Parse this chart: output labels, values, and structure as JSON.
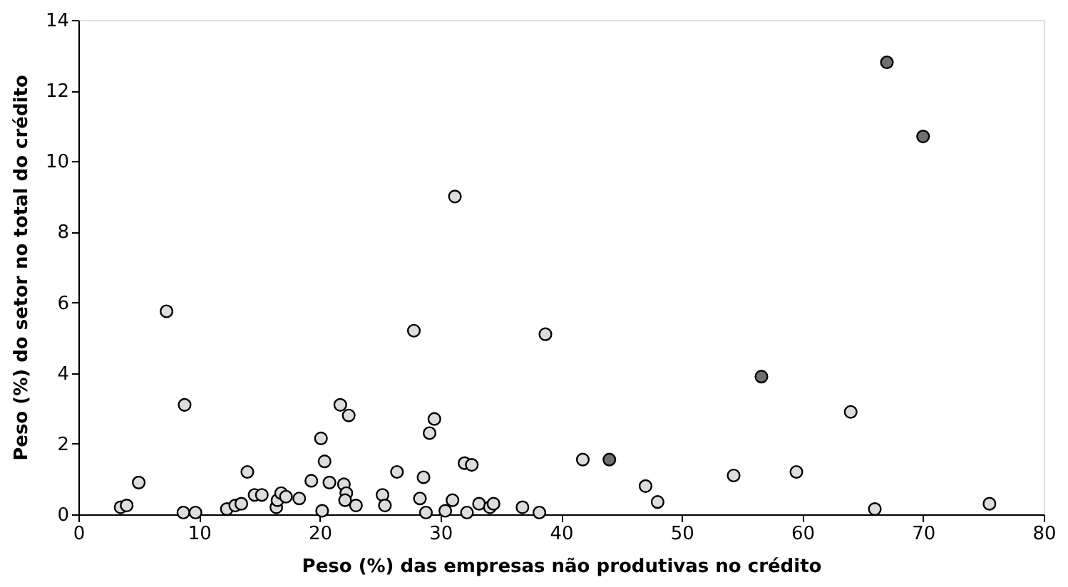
{
  "chart_data": {
    "type": "scatter",
    "xlabel": "Peso (%) das empresas não produtivas no crédito",
    "ylabel": "Peso (%) do setor no total do crédito",
    "xlim": [
      0,
      80
    ],
    "xticks": [
      0,
      10,
      20,
      30,
      40,
      50,
      60,
      70,
      80
    ],
    "ylim": [
      0,
      14
    ],
    "yticks": [
      0,
      2,
      4,
      6,
      8,
      10,
      12,
      14
    ],
    "grid": false,
    "legend": false,
    "marker": "circle",
    "series": [
      {
        "color": "#dddddd",
        "x": [
          3.5,
          4,
          5,
          7.3,
          8.8,
          8.7,
          9.7,
          12.3,
          13,
          13.5,
          14,
          14.6,
          15.2,
          16.4,
          16.5,
          16.8,
          17.2,
          18.3,
          19.3,
          20.1,
          20.4,
          20.2,
          20.8,
          21.7,
          22,
          22.4,
          22.2,
          22.1,
          23,
          25.2,
          25.4,
          26.4,
          27.8,
          28.3,
          28.6,
          28.8,
          29.1,
          29.5,
          30.4,
          31,
          31.2,
          32,
          32.2,
          32.6,
          33.2,
          34.1,
          34.4,
          36.8,
          38.2,
          38.7,
          41.8,
          47,
          48,
          54.3,
          59.5,
          64,
          66,
          75.5
        ],
        "values": [
          0.2,
          0.25,
          0.9,
          5.75,
          3.1,
          0.05,
          0.05,
          0.15,
          0.25,
          0.3,
          1.2,
          0.55,
          0.55,
          0.2,
          0.4,
          0.6,
          0.5,
          0.45,
          0.95,
          2.15,
          1.5,
          0.1,
          0.9,
          3.1,
          0.85,
          2.8,
          0.6,
          0.4,
          0.25,
          0.55,
          0.25,
          1.2,
          5.2,
          0.45,
          1.05,
          0.05,
          2.3,
          2.7,
          0.1,
          0.4,
          9.0,
          1.45,
          0.05,
          1.4,
          0.3,
          0.2,
          0.3,
          0.2,
          0.05,
          5.1,
          1.55,
          0.8,
          0.35,
          1.1,
          1.2,
          2.9,
          0.15,
          0.3
        ]
      },
      {
        "color": "#707070",
        "x": [
          44,
          56.6,
          67,
          70
        ],
        "values": [
          1.55,
          3.9,
          12.8,
          10.7
        ]
      }
    ]
  }
}
